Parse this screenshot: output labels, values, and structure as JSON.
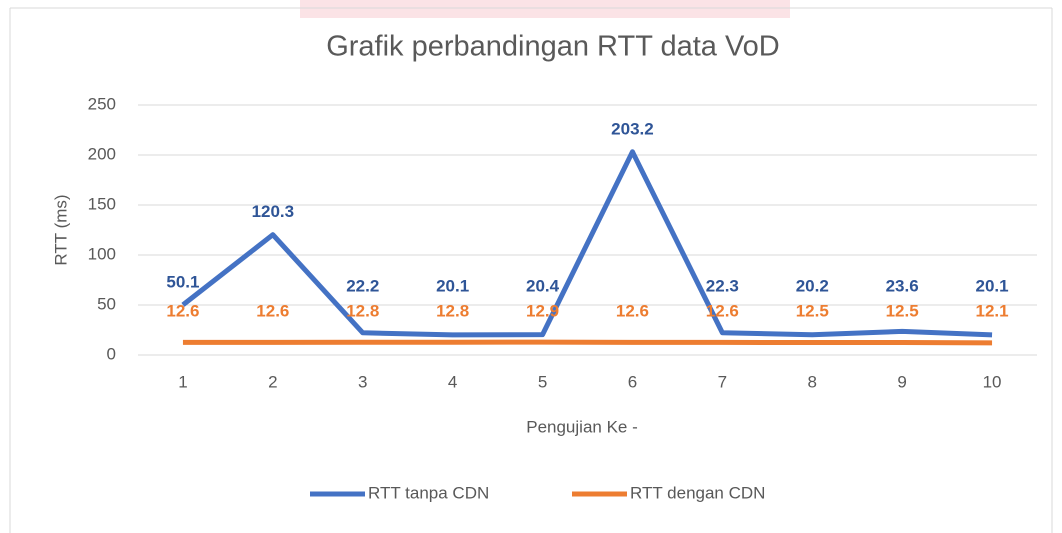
{
  "chart_data": {
    "type": "line",
    "title": "Grafik perbandingan RTT data VoD",
    "x_label": "Pengujian Ke -",
    "y_label": "RTT (ms)",
    "categories": [
      "1",
      "2",
      "3",
      "4",
      "5",
      "6",
      "7",
      "8",
      "9",
      "10"
    ],
    "series": [
      {
        "name": "RTT tanpa CDN",
        "color": "#4472c4",
        "label_color": "#2f5597",
        "values": [
          50.1,
          120.3,
          22.2,
          20.1,
          20.4,
          203.2,
          22.3,
          20.2,
          23.6,
          20.1
        ]
      },
      {
        "name": "RTT dengan CDN",
        "color": "#ed7d31",
        "label_color": "#ed7d31",
        "values": [
          12.6,
          12.6,
          12.8,
          12.8,
          12.9,
          12.6,
          12.6,
          12.5,
          12.5,
          12.1
        ]
      }
    ],
    "ylim": [
      0,
      250
    ],
    "yticks": [
      0,
      50,
      100,
      150,
      200,
      250
    ],
    "grid": true,
    "legend": "bottom"
  }
}
